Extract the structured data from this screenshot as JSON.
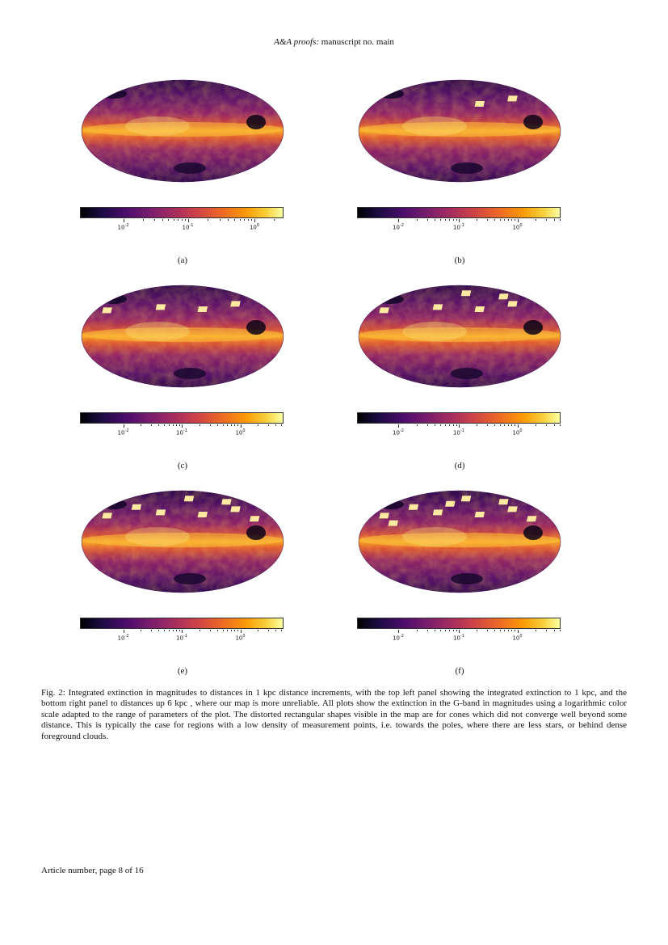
{
  "header": {
    "journal": "A&A proofs:",
    "rest": "manuscript no. main"
  },
  "figure": {
    "colormap": "inferno",
    "scale": "logarithmic",
    "panels": [
      {
        "label": "(a)",
        "ticks": [
          "10",
          "10",
          "10"
        ],
        "exps": [
          "-2",
          "-1",
          "0"
        ],
        "tickpos": [
          0.21,
          0.53,
          0.86
        ],
        "patches": 0
      },
      {
        "label": "(b)",
        "ticks": [
          "10",
          "10",
          "10"
        ],
        "exps": [
          "-2",
          "-1",
          "0"
        ],
        "tickpos": [
          0.2,
          0.5,
          0.79
        ],
        "patches": 2
      },
      {
        "label": "(c)",
        "ticks": [
          "10",
          "10",
          "10"
        ],
        "exps": [
          "-2",
          "-1",
          "0"
        ],
        "tickpos": [
          0.21,
          0.5,
          0.79
        ],
        "patches": 4
      },
      {
        "label": "(d)",
        "ticks": [
          "10",
          "10",
          "10"
        ],
        "exps": [
          "-2",
          "-1",
          "0"
        ],
        "tickpos": [
          0.2,
          0.5,
          0.79
        ],
        "patches": 6
      },
      {
        "label": "(e)",
        "ticks": [
          "10",
          "10",
          "10"
        ],
        "exps": [
          "-2",
          "-1",
          "0"
        ],
        "tickpos": [
          0.21,
          0.5,
          0.79
        ],
        "patches": 8
      },
      {
        "label": "(f)",
        "ticks": [
          "10",
          "10",
          "10"
        ],
        "exps": [
          "-2",
          "-1",
          "0"
        ],
        "tickpos": [
          0.2,
          0.5,
          0.79
        ],
        "patches": 10
      }
    ]
  },
  "caption": "Fig. 2: Integrated extinction in magnitudes to distances in 1 kpc distance increments, with the top left panel showing the integrated extinction to 1 kpc, and the bottom right panel to distances up 6 kpc , where our map is more unreliable. All plots show the extinction in the G-band in magnitudes using a logarithmic color scale adapted to the range of parameters of the plot. The distorted rectangular shapes visible in the map are for cones which did not converge well beyond some distance. This is typically the case for regions with a low density of measurement points, i.e. towards the poles, where there are less stars, or behind dense foreground clouds.",
  "footer": "Article number, page 8 of 16"
}
